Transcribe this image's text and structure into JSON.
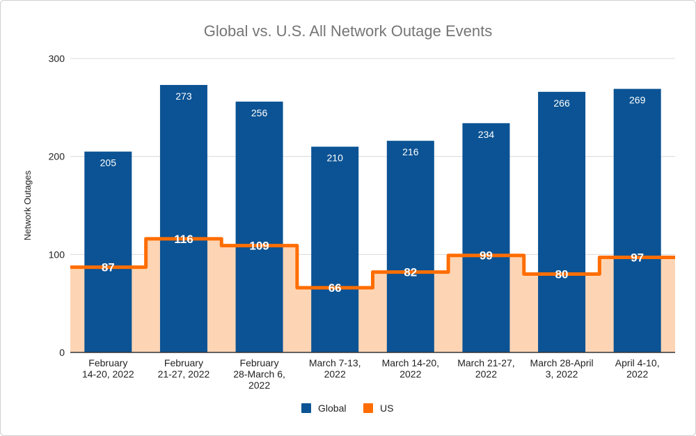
{
  "chart_data": {
    "type": "bar",
    "title": "Global vs. U.S. All Network Outage Events",
    "xlabel": "",
    "ylabel": "Network Outages",
    "ylim": [
      0,
      300
    ],
    "yticks": [
      "0",
      "100",
      "200",
      "300"
    ],
    "ytick_values": [
      0,
      100,
      200,
      300
    ],
    "grid": true,
    "legend_position": "bottom",
    "categories": [
      [
        "February",
        "14-20, 2022"
      ],
      [
        "February",
        "21-27, 2022"
      ],
      [
        "February",
        "28-March 6,",
        "2022"
      ],
      [
        "March 7-13,",
        "2022"
      ],
      [
        "March 14-20,",
        "2022"
      ],
      [
        "March 21-27,",
        "2022"
      ],
      [
        "March 28-April",
        "3, 2022"
      ],
      [
        "April 4-10,",
        "2022"
      ]
    ],
    "series": [
      {
        "name": "Global",
        "type": "bar",
        "color": "#0b5394",
        "values": [
          205,
          273,
          256,
          210,
          216,
          234,
          266,
          269
        ]
      },
      {
        "name": "US",
        "type": "stepped-area",
        "color": "#ff6d01",
        "fill": "#fdd5b5",
        "values": [
          87,
          116,
          109,
          66,
          82,
          99,
          80,
          97
        ]
      }
    ]
  }
}
